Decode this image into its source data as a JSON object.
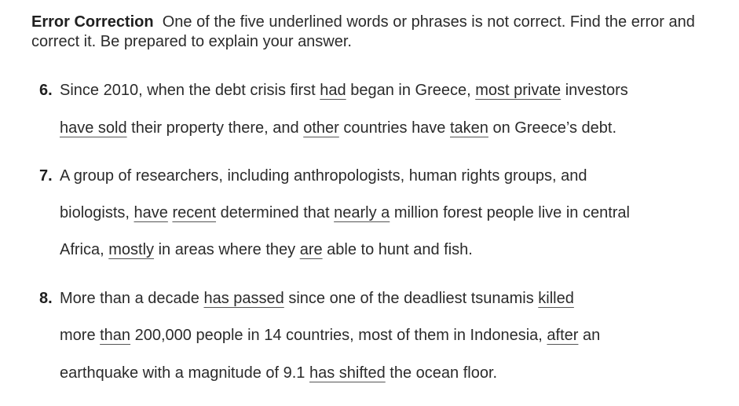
{
  "instructions": {
    "heading": "Error Correction",
    "text": "One of the five underlined words or phrases is not correct. Find the error and correct it. Be prepared to explain your answer."
  },
  "items": [
    {
      "number": "6.",
      "lines": [
        [
          {
            "t": "Since 2010, when the debt crisis first ",
            "u": false
          },
          {
            "t": "had",
            "u": true
          },
          {
            "t": " began in Greece, ",
            "u": false
          },
          {
            "t": "most private",
            "u": true
          },
          {
            "t": " investors",
            "u": false
          }
        ],
        [
          {
            "t": "have sold",
            "u": true
          },
          {
            "t": " their property there, and ",
            "u": false
          },
          {
            "t": "other",
            "u": true
          },
          {
            "t": " countries have ",
            "u": false
          },
          {
            "t": "taken",
            "u": true
          },
          {
            "t": " on Greece’s debt.",
            "u": false
          }
        ]
      ]
    },
    {
      "number": "7.",
      "lines": [
        [
          {
            "t": "A group of researchers, including anthropologists, human rights groups, and",
            "u": false
          }
        ],
        [
          {
            "t": "biologists, ",
            "u": false
          },
          {
            "t": "have",
            "u": true
          },
          {
            "t": " ",
            "u": false
          },
          {
            "t": "recent",
            "u": true
          },
          {
            "t": " determined that ",
            "u": false
          },
          {
            "t": "nearly a",
            "u": true
          },
          {
            "t": " million forest people live in central",
            "u": false
          }
        ],
        [
          {
            "t": "Africa, ",
            "u": false
          },
          {
            "t": "mostly",
            "u": true
          },
          {
            "t": " in areas where they ",
            "u": false
          },
          {
            "t": "are",
            "u": true
          },
          {
            "t": " able to hunt and fish.",
            "u": false
          }
        ]
      ]
    },
    {
      "number": "8.",
      "lines": [
        [
          {
            "t": "More than a decade ",
            "u": false
          },
          {
            "t": "has passed",
            "u": true
          },
          {
            "t": " since one of the deadliest tsunamis ",
            "u": false
          },
          {
            "t": "killed",
            "u": true
          }
        ],
        [
          {
            "t": "more ",
            "u": false
          },
          {
            "t": "than",
            "u": true
          },
          {
            "t": " 200,000 people in 14 countries, most of them in Indonesia, ",
            "u": false
          },
          {
            "t": "after",
            "u": true
          },
          {
            "t": " an",
            "u": false
          }
        ],
        [
          {
            "t": "earthquake with a magnitude of 9.1 ",
            "u": false
          },
          {
            "t": "has shifted",
            "u": true
          },
          {
            "t": " the ocean floor.",
            "u": false
          }
        ]
      ]
    }
  ]
}
